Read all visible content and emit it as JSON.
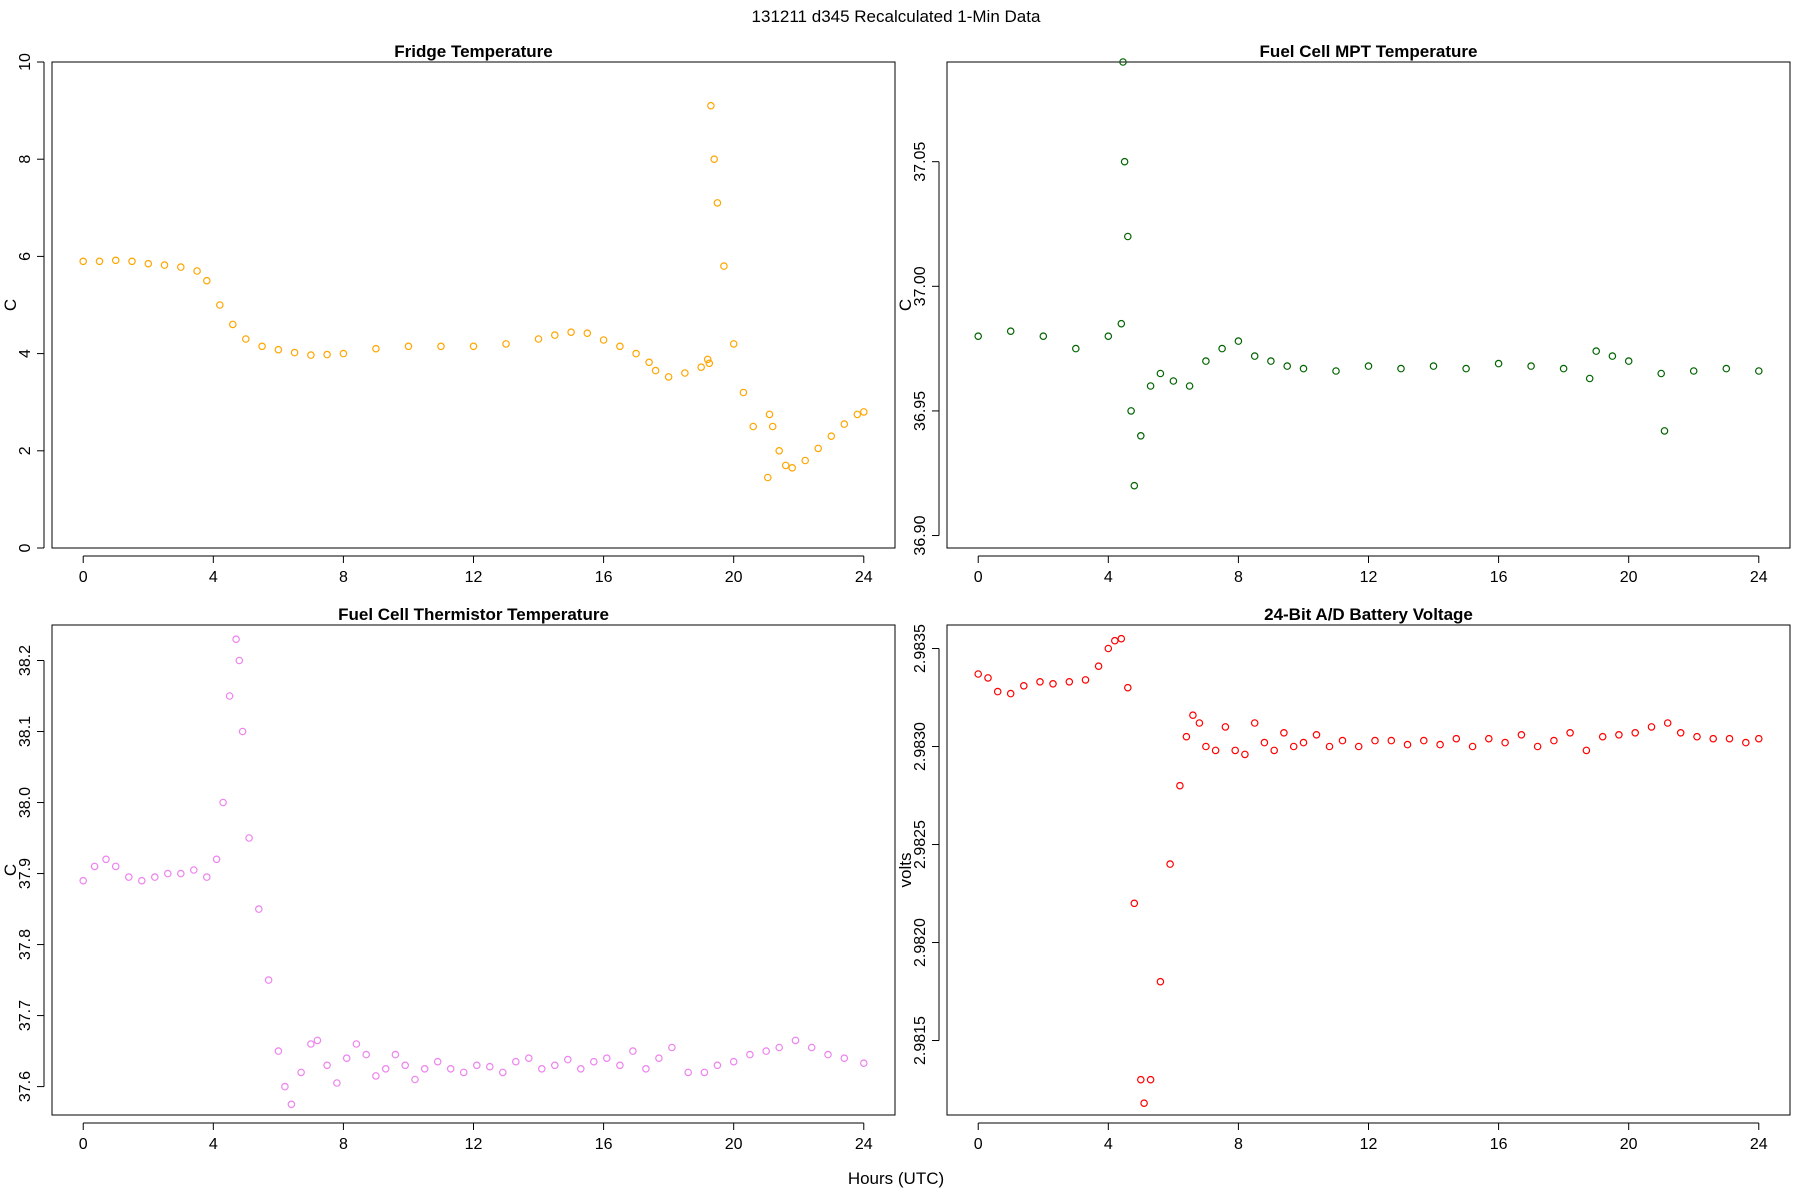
{
  "figure": {
    "title": "131211   d345   Recalculated 1-Min Data",
    "xlabel": "Hours (UTC)"
  },
  "chart_data": [
    {
      "type": "scatter",
      "title": "Fridge Temperature",
      "xlabel": "",
      "ylabel": "C",
      "color": "#FFA500",
      "xlim": [
        0,
        24
      ],
      "ylim": [
        0,
        10
      ],
      "xticks": [
        0,
        4,
        8,
        12,
        16,
        20,
        24
      ],
      "yticks": [
        0,
        2,
        4,
        6,
        8,
        10
      ],
      "tick_labels": {
        "y": [
          "0",
          "2",
          "4",
          "6",
          "8",
          "10"
        ]
      },
      "series": [
        {
          "name": "Fridge Temperature",
          "x": [
            0,
            0.5,
            1,
            1.5,
            2,
            2.5,
            3,
            3.5,
            3.8,
            4.2,
            4.6,
            5,
            5.5,
            6,
            6.5,
            7,
            7.5,
            8,
            9,
            10,
            11,
            12,
            13,
            14,
            14.5,
            15,
            15.5,
            16,
            16.5,
            17,
            17.4,
            17.6,
            18,
            18.5,
            19,
            19.2,
            19.25,
            19.3,
            19.4,
            19.5,
            19.7,
            20,
            20.3,
            20.6,
            21.05,
            21.1,
            21.2,
            21.4,
            21.6,
            21.8,
            22.2,
            22.6,
            23,
            23.4,
            23.8,
            24
          ],
          "y": [
            5.9,
            5.9,
            5.92,
            5.9,
            5.85,
            5.82,
            5.78,
            5.7,
            5.5,
            5.0,
            4.6,
            4.3,
            4.15,
            4.08,
            4.02,
            3.97,
            3.98,
            4.0,
            4.1,
            4.15,
            4.15,
            4.15,
            4.2,
            4.3,
            4.38,
            4.44,
            4.42,
            4.28,
            4.15,
            4.0,
            3.82,
            3.65,
            3.52,
            3.6,
            3.72,
            3.88,
            3.8,
            9.1,
            8.0,
            7.1,
            5.8,
            4.2,
            3.2,
            2.5,
            1.45,
            2.75,
            2.5,
            2.0,
            1.7,
            1.65,
            1.8,
            2.05,
            2.3,
            2.55,
            2.75,
            2.8
          ]
        }
      ]
    },
    {
      "type": "scatter",
      "title": "Fuel Cell MPT Temperature",
      "xlabel": "",
      "ylabel": "C",
      "color": "#006400",
      "xlim": [
        0,
        24
      ],
      "ylim": [
        36.895,
        37.09
      ],
      "xticks": [
        0,
        4,
        8,
        12,
        16,
        20,
        24
      ],
      "yticks": [
        36.9,
        36.95,
        37.0,
        37.05
      ],
      "tick_labels": {
        "y": [
          "36.90",
          "36.95",
          "37.00",
          "37.05"
        ]
      },
      "series": [
        {
          "name": "Fuel Cell MPT Temperature",
          "x": [
            0,
            1,
            2,
            3,
            4,
            4.4,
            4.45,
            4.5,
            4.6,
            4.7,
            4.8,
            5.0,
            5.3,
            5.6,
            6,
            6.5,
            7,
            7.5,
            8,
            8.5,
            9,
            9.5,
            10,
            11,
            12,
            13,
            14,
            15,
            16,
            17,
            18,
            18.8,
            19,
            19.5,
            20,
            21,
            21.1,
            22,
            23,
            24
          ],
          "y": [
            36.98,
            36.982,
            36.98,
            36.975,
            36.98,
            36.985,
            37.09,
            37.05,
            37.02,
            36.95,
            36.92,
            36.94,
            36.96,
            36.965,
            36.962,
            36.96,
            36.97,
            36.975,
            36.978,
            36.972,
            36.97,
            36.968,
            36.967,
            36.966,
            36.968,
            36.967,
            36.968,
            36.967,
            36.969,
            36.968,
            36.967,
            36.963,
            36.974,
            36.972,
            36.97,
            36.965,
            36.942,
            36.966,
            36.967,
            36.966
          ]
        }
      ]
    },
    {
      "type": "scatter",
      "title": "Fuel Cell Thermistor Temperature",
      "xlabel": "",
      "ylabel": "C",
      "color": "#EE82EE",
      "xlim": [
        0,
        24
      ],
      "ylim": [
        37.56,
        38.25
      ],
      "xticks": [
        0,
        4,
        8,
        12,
        16,
        20,
        24
      ],
      "yticks": [
        37.6,
        37.7,
        37.8,
        37.9,
        38.0,
        38.1,
        38.2
      ],
      "tick_labels": {
        "y": [
          "37.6",
          "37.7",
          "37.8",
          "37.9",
          "38.0",
          "38.1",
          "38.2"
        ]
      },
      "series": [
        {
          "name": "Fuel Cell Thermistor Temperature",
          "x": [
            0,
            0.35,
            0.7,
            1.0,
            1.4,
            1.8,
            2.2,
            2.6,
            3.0,
            3.4,
            3.8,
            4.1,
            4.3,
            4.5,
            4.7,
            4.8,
            4.9,
            5.1,
            5.4,
            5.7,
            6.0,
            6.2,
            6.4,
            6.7,
            7.0,
            7.2,
            7.5,
            7.8,
            8.1,
            8.4,
            8.7,
            9.0,
            9.3,
            9.6,
            9.9,
            10.2,
            10.5,
            10.9,
            11.3,
            11.7,
            12.1,
            12.5,
            12.9,
            13.3,
            13.7,
            14.1,
            14.5,
            14.9,
            15.3,
            15.7,
            16.1,
            16.5,
            16.9,
            17.3,
            17.7,
            18.1,
            18.6,
            19.1,
            19.5,
            20,
            20.5,
            21,
            21.4,
            21.9,
            22.4,
            22.9,
            23.4,
            24
          ],
          "y": [
            37.89,
            37.91,
            37.92,
            37.91,
            37.895,
            37.89,
            37.895,
            37.9,
            37.9,
            37.905,
            37.895,
            37.92,
            38.0,
            38.15,
            38.23,
            38.2,
            38.1,
            37.95,
            37.85,
            37.75,
            37.65,
            37.6,
            37.575,
            37.62,
            37.66,
            37.665,
            37.63,
            37.605,
            37.64,
            37.66,
            37.645,
            37.615,
            37.625,
            37.645,
            37.63,
            37.61,
            37.625,
            37.635,
            37.625,
            37.62,
            37.63,
            37.628,
            37.62,
            37.635,
            37.64,
            37.625,
            37.63,
            37.638,
            37.625,
            37.635,
            37.64,
            37.63,
            37.65,
            37.625,
            37.64,
            37.655,
            37.62,
            37.62,
            37.63,
            37.635,
            37.645,
            37.65,
            37.655,
            37.665,
            37.655,
            37.645,
            37.64,
            37.633
          ]
        }
      ]
    },
    {
      "type": "scatter",
      "title": "24-Bit A/D Battery Voltage",
      "xlabel": "",
      "ylabel": "volts",
      "color": "#FF0000",
      "xlim": [
        0,
        24
      ],
      "ylim": [
        2.98112,
        2.98362
      ],
      "xticks": [
        0,
        4,
        8,
        12,
        16,
        20,
        24
      ],
      "yticks": [
        2.9815,
        2.982,
        2.9825,
        2.983,
        2.9835
      ],
      "tick_labels": {
        "y": [
          "2.9815",
          "2.9820",
          "2.9825",
          "2.9830",
          "2.9835"
        ]
      },
      "series": [
        {
          "name": "24-Bit A/D Battery Voltage",
          "x": [
            0,
            0.3,
            0.6,
            1.0,
            1.4,
            1.9,
            2.3,
            2.8,
            3.3,
            3.7,
            4.0,
            4.2,
            4.4,
            4.6,
            4.8,
            5.0,
            5.1,
            5.3,
            5.6,
            5.9,
            6.2,
            6.4,
            6.6,
            6.8,
            7.0,
            7.3,
            7.6,
            7.9,
            8.2,
            8.5,
            8.8,
            9.1,
            9.4,
            9.7,
            10,
            10.4,
            10.8,
            11.2,
            11.7,
            12.2,
            12.7,
            13.2,
            13.7,
            14.2,
            14.7,
            15.2,
            15.7,
            16.2,
            16.7,
            17.2,
            17.7,
            18.2,
            18.7,
            19.2,
            19.7,
            20.2,
            20.7,
            21.2,
            21.6,
            22.1,
            22.6,
            23.1,
            23.6,
            24
          ],
          "y": [
            2.98337,
            2.98335,
            2.98328,
            2.98327,
            2.98331,
            2.98333,
            2.98332,
            2.98333,
            2.98334,
            2.98341,
            2.9835,
            2.98354,
            2.98355,
            2.9833,
            2.9822,
            2.9813,
            2.98118,
            2.9813,
            2.9818,
            2.9824,
            2.9828,
            2.98305,
            2.98316,
            2.98312,
            2.983,
            2.98298,
            2.9831,
            2.98298,
            2.98296,
            2.98312,
            2.98302,
            2.98298,
            2.98307,
            2.983,
            2.98302,
            2.98306,
            2.983,
            2.98303,
            2.983,
            2.98303,
            2.98303,
            2.98301,
            2.98303,
            2.98301,
            2.98304,
            2.983,
            2.98304,
            2.98302,
            2.98306,
            2.983,
            2.98303,
            2.98307,
            2.98298,
            2.98305,
            2.98306,
            2.98307,
            2.9831,
            2.98312,
            2.98307,
            2.98305,
            2.98304,
            2.98304,
            2.98302,
            2.98304
          ]
        }
      ]
    }
  ]
}
